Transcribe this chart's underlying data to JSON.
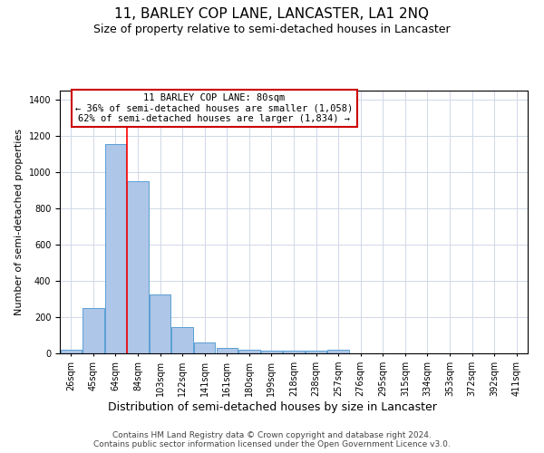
{
  "title": "11, BARLEY COP LANE, LANCASTER, LA1 2NQ",
  "subtitle": "Size of property relative to semi-detached houses in Lancaster",
  "xlabel": "Distribution of semi-detached houses by size in Lancaster",
  "ylabel": "Number of semi-detached properties",
  "bar_labels": [
    "26sqm",
    "45sqm",
    "64sqm",
    "84sqm",
    "103sqm",
    "122sqm",
    "141sqm",
    "161sqm",
    "180sqm",
    "199sqm",
    "218sqm",
    "238sqm",
    "257sqm",
    "276sqm",
    "295sqm",
    "315sqm",
    "334sqm",
    "353sqm",
    "372sqm",
    "392sqm",
    "411sqm"
  ],
  "bar_values": [
    20,
    250,
    1155,
    950,
    325,
    145,
    62,
    30,
    20,
    15,
    15,
    15,
    18,
    0,
    0,
    0,
    0,
    0,
    0,
    0,
    0
  ],
  "bar_color": "#aec6e8",
  "bar_edge_color": "#5a9fd4",
  "grid_color": "#d0d8e8",
  "annotation_box_text": "11 BARLEY COP LANE: 80sqm\n← 36% of semi-detached houses are smaller (1,058)\n62% of semi-detached houses are larger (1,834) →",
  "annotation_box_color": "#ffffff",
  "annotation_box_edge_color": "#cc0000",
  "ylim": [
    0,
    1450
  ],
  "yticks": [
    0,
    200,
    400,
    600,
    800,
    1000,
    1200,
    1400
  ],
  "red_line_x": 2.5,
  "footer_line1": "Contains HM Land Registry data © Crown copyright and database right 2024.",
  "footer_line2": "Contains public sector information licensed under the Open Government Licence v3.0.",
  "title_fontsize": 11,
  "subtitle_fontsize": 9,
  "xlabel_fontsize": 9,
  "ylabel_fontsize": 8,
  "tick_fontsize": 7,
  "footer_fontsize": 6.5,
  "annot_fontsize": 7.5
}
